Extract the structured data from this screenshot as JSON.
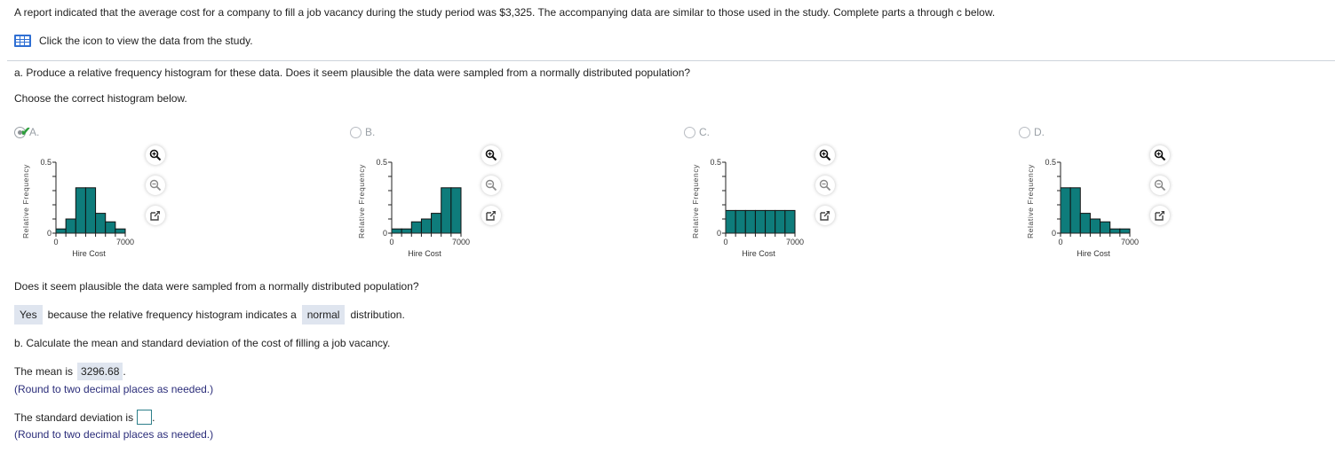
{
  "intro": {
    "text": "A report indicated that the average cost for a company to fill a job vacancy during the study period was $3,325. The accompanying data are similar to those used in the study. Complete parts a through c below."
  },
  "data_link": {
    "icon": "table-grid-icon",
    "label": "Click the icon to view the data from the study."
  },
  "part_a": {
    "question": "a. Produce a relative frequency histogram for these data. Does it seem plausible the data were sampled from a normally distributed population?",
    "instruction": "Choose the correct histogram below."
  },
  "options": [
    {
      "letter": "A.",
      "selected": true,
      "correct": true
    },
    {
      "letter": "B.",
      "selected": false
    },
    {
      "letter": "C.",
      "selected": false
    },
    {
      "letter": "D.",
      "selected": false
    }
  ],
  "chart_common": {
    "ylabel": "Relative Frequency",
    "xlabel": "Hire Cost",
    "y_top_label": "0.5",
    "y_bottom_label": "0",
    "x_left_label": "0",
    "x_right_label": "7000",
    "bar_color": "#0e7c7b"
  },
  "tools": {
    "zoom_in": "zoom-in-icon",
    "zoom_out": "zoom-out-icon",
    "popout": "popout-icon"
  },
  "chart_data": [
    {
      "type": "bar",
      "title": "A.",
      "xlabel": "Hire Cost",
      "ylabel": "Relative Frequency",
      "categories": [
        "0-1000",
        "1000-2000",
        "2000-3000",
        "3000-4000",
        "4000-5000",
        "5000-6000",
        "6000-7000"
      ],
      "values": [
        0.03,
        0.1,
        0.32,
        0.32,
        0.14,
        0.08,
        0.03
      ],
      "xlim": [
        0,
        7000
      ],
      "ylim": [
        0,
        0.5
      ],
      "yticks": [
        0,
        0.1,
        0.2,
        0.3,
        0.4,
        0.5
      ],
      "grid": false
    },
    {
      "type": "bar",
      "title": "B.",
      "xlabel": "Hire Cost",
      "ylabel": "Relative Frequency",
      "categories": [
        "0-1000",
        "1000-2000",
        "2000-3000",
        "3000-4000",
        "4000-5000",
        "5000-6000",
        "6000-7000"
      ],
      "values": [
        0.03,
        0.03,
        0.08,
        0.1,
        0.14,
        0.32,
        0.32
      ],
      "xlim": [
        0,
        7000
      ],
      "ylim": [
        0,
        0.5
      ],
      "yticks": [
        0,
        0.1,
        0.2,
        0.3,
        0.4,
        0.5
      ],
      "grid": false
    },
    {
      "type": "bar",
      "title": "C.",
      "xlabel": "Hire Cost",
      "ylabel": "Relative Frequency",
      "categories": [
        "0-1000",
        "1000-2000",
        "2000-3000",
        "3000-4000",
        "4000-5000",
        "5000-6000",
        "6000-7000"
      ],
      "values": [
        0.16,
        0.16,
        0.16,
        0.16,
        0.16,
        0.16,
        0.16
      ],
      "xlim": [
        0,
        7000
      ],
      "ylim": [
        0,
        0.5
      ],
      "yticks": [
        0,
        0.1,
        0.2,
        0.3,
        0.4,
        0.5
      ],
      "grid": false
    },
    {
      "type": "bar",
      "title": "D.",
      "xlabel": "Hire Cost",
      "ylabel": "Relative Frequency",
      "categories": [
        "0-1000",
        "1000-2000",
        "2000-3000",
        "3000-4000",
        "4000-5000",
        "5000-6000",
        "6000-7000"
      ],
      "values": [
        0.32,
        0.32,
        0.14,
        0.1,
        0.08,
        0.03,
        0.03
      ],
      "xlim": [
        0,
        7000
      ],
      "ylim": [
        0,
        0.5
      ],
      "yticks": [
        0,
        0.1,
        0.2,
        0.3,
        0.4,
        0.5
      ],
      "grid": false
    }
  ],
  "plausibility": {
    "question": "Does it seem plausible the data were sampled from a normally distributed population?",
    "answer1": "Yes",
    "middle_text": "because the relative frequency histogram indicates a",
    "answer2": "normal",
    "end_text": "distribution."
  },
  "part_b": {
    "question": "b. Calculate the mean and standard deviation of the cost of filling a job vacancy.",
    "mean_prefix": "The mean is",
    "mean_value": "3296.68",
    "mean_suffix": ".",
    "mean_hint": "(Round to two decimal places as needed.)",
    "sd_prefix": "The standard deviation is",
    "sd_value": "",
    "sd_suffix": ".",
    "sd_hint": "(Round to two decimal places as needed.)"
  }
}
